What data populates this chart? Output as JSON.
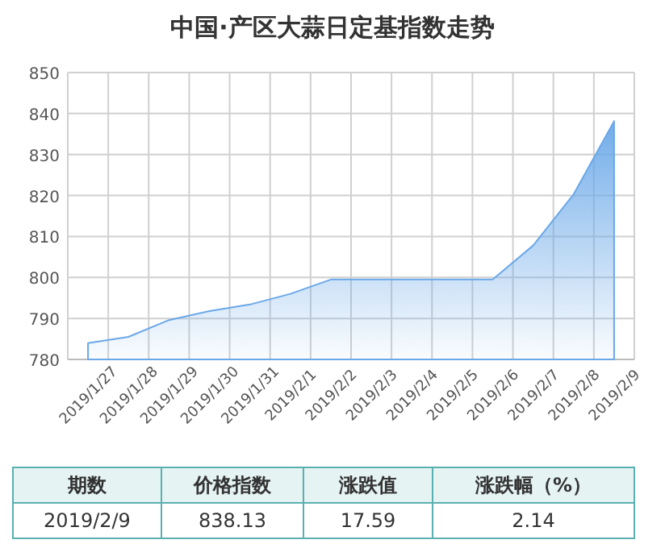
{
  "chart_data": {
    "type": "area",
    "title": "中国·产区大蒜日定基指数走势",
    "categories": [
      "2019/1/27",
      "2019/1/28",
      "2019/1/29",
      "2019/1/30",
      "2019/1/31",
      "2019/2/1",
      "2019/2/2",
      "2019/2/3",
      "2019/2/4",
      "2019/2/5",
      "2019/2/6",
      "2019/2/7",
      "2019/2/8",
      "2019/2/9"
    ],
    "series": [
      {
        "color": "#6aa8e8",
        "values": [
          784,
          785.5,
          789.6,
          791.8,
          793.4,
          796,
          799.5,
          799.5,
          799.5,
          799.5,
          799.5,
          807.8,
          820.3,
          838.13
        ]
      }
    ],
    "ylim": [
      780,
      850
    ],
    "yticks": [
      780,
      790,
      800,
      810,
      820,
      830,
      840,
      850
    ],
    "grid": true,
    "annotations": [
      "期数",
      "价格指数",
      "涨跌值",
      "涨跌幅（%）",
      "2019/2/9",
      "838.13",
      "17.59",
      "2.14"
    ]
  }
}
